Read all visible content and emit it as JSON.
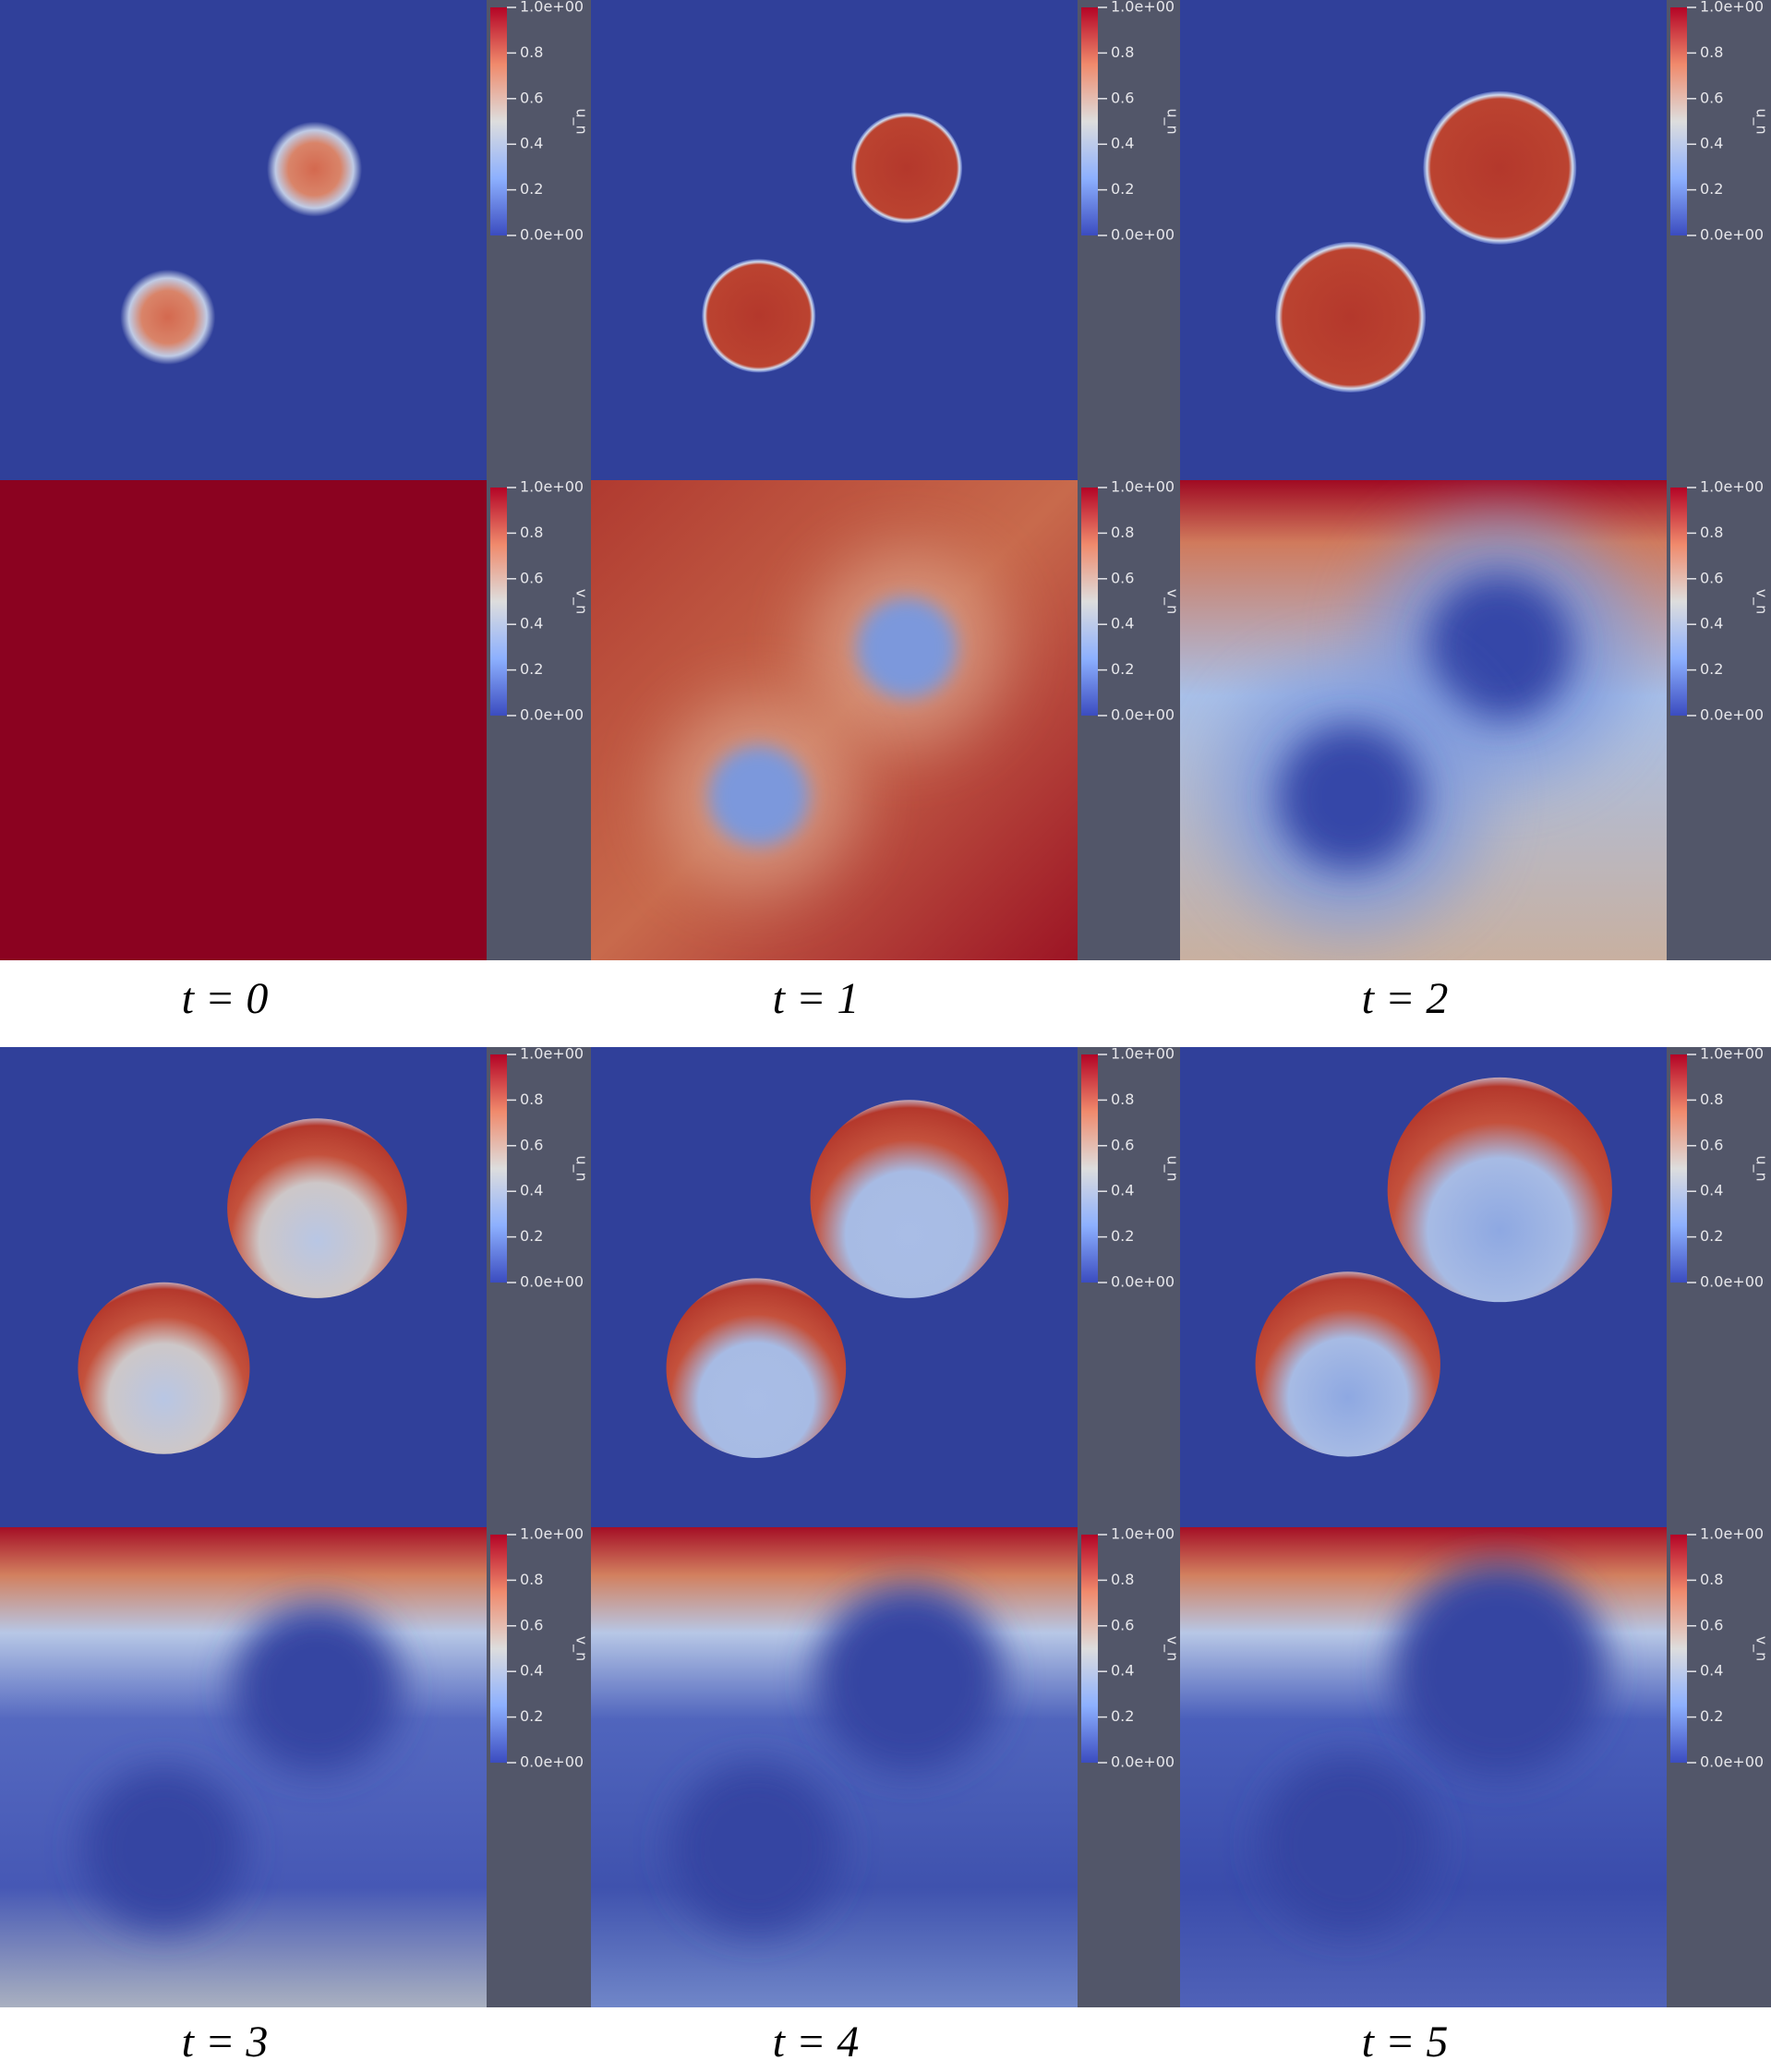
{
  "colorbar": {
    "ticks": [
      "1.0e+00",
      "0.8",
      "0.6",
      "0.4",
      "0.2",
      "0.0e+00"
    ]
  },
  "fields": [
    "u_n",
    "v_n"
  ],
  "panels": [
    {
      "caption": "t = 0"
    },
    {
      "caption": "t = 1"
    },
    {
      "caption": "t = 2"
    },
    {
      "caption": "t = 3"
    },
    {
      "caption": "t = 4"
    },
    {
      "caption": "t = 5"
    }
  ]
}
